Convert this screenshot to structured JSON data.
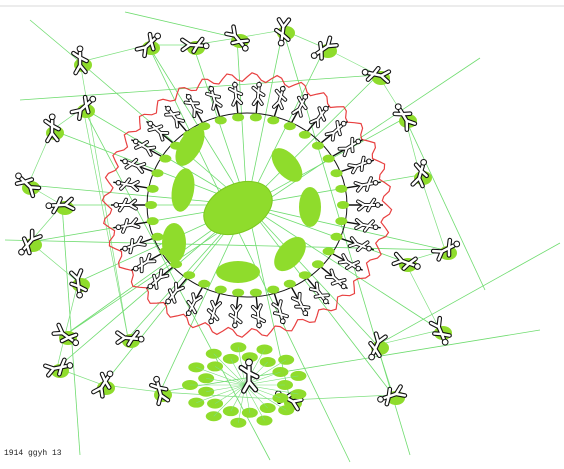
{
  "caption": "1914 ggyh 13"
}
